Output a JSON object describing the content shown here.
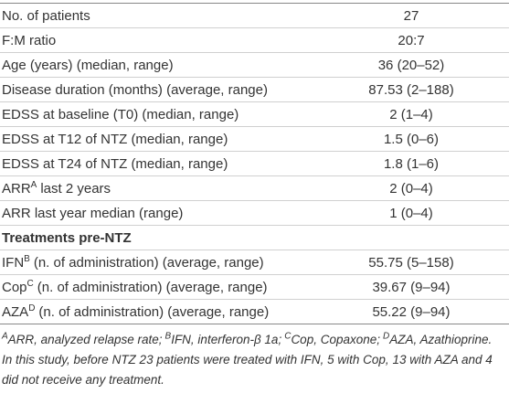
{
  "table": {
    "rows": [
      {
        "label": "No. of patients",
        "value": "27"
      },
      {
        "label": "F:M ratio",
        "value": "20:7"
      },
      {
        "label": "Age (years) (median, range)",
        "value": "36 (20–52)"
      },
      {
        "label": "Disease duration (months) (average, range)",
        "value": "87.53 (2–188)"
      },
      {
        "label": "EDSS at baseline (T0) (median, range)",
        "value": "2 (1–4)"
      },
      {
        "label": "EDSS at T12 of NTZ (median, range)",
        "value": "1.5 (0–6)"
      },
      {
        "label": "EDSS at T24 of NTZ (median, range)",
        "value": "1.8 (1–6)"
      },
      {
        "label": "ARR",
        "sup": "A",
        "after": "last 2 years",
        "value": "2 (0–4)"
      },
      {
        "label": "ARR last year median (range)",
        "value": "1 (0–4)"
      },
      {
        "section": "Treatments pre-NTZ"
      },
      {
        "label": "IFN",
        "sup": "B",
        "after": "(n. of administration) (average, range)",
        "value": "55.75 (5–158)"
      },
      {
        "label": "Cop",
        "sup": "C",
        "after": "(n. of administration) (average, range)",
        "value": "39.67 (9–94)"
      },
      {
        "label": "AZA",
        "sup": "D",
        "after": "(n. of administration) (average, range)",
        "value": "55.22 (9–94)"
      }
    ]
  },
  "footnote": {
    "abbreviations": [
      {
        "mark": "A",
        "text": "ARR, analyzed relapse rate;"
      },
      {
        "mark": "B",
        "text": "IFN, interferon-β 1a;"
      },
      {
        "mark": "C",
        "text": "Cop, Copaxone;"
      },
      {
        "mark": "D",
        "text": "AZA, Azathioprine."
      }
    ],
    "note": "In this study, before NTZ 23 patients were treated with IFN, 5 with Cop, 13 with AZA and 4 did not receive any treatment."
  }
}
